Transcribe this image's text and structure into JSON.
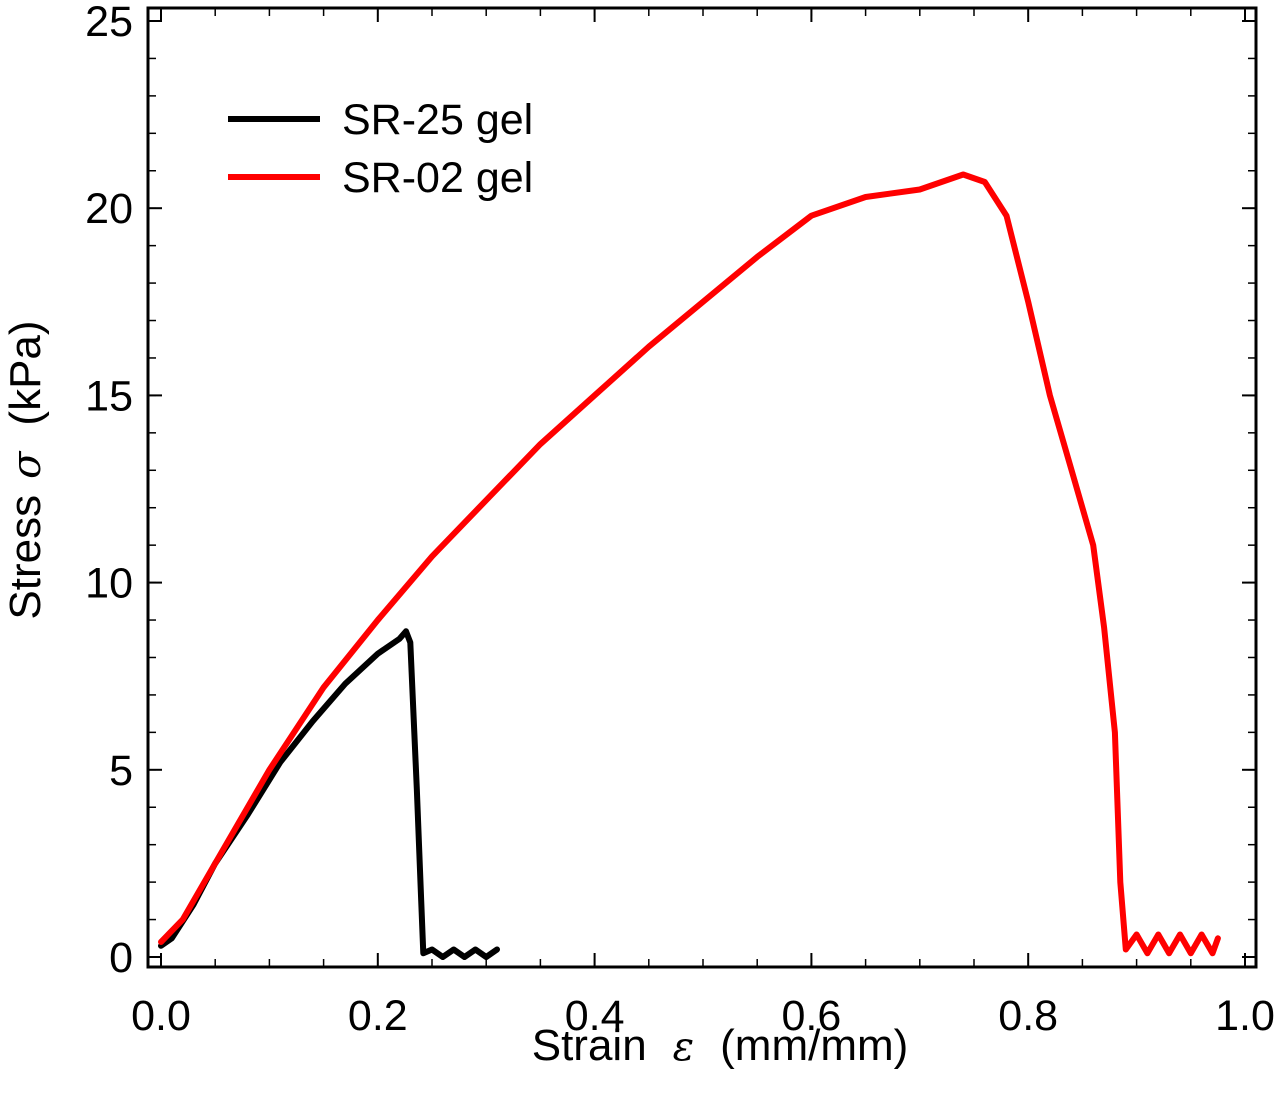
{
  "chart_data": {
    "type": "line",
    "xlabel": {
      "text": "Strain",
      "symbol": "ε",
      "unit": "(mm/mm)"
    },
    "ylabel": {
      "text": "Stress",
      "symbol": "σ",
      "unit": "(kPa)"
    },
    "xlim": [
      0.0,
      1.0
    ],
    "ylim": [
      0,
      25
    ],
    "xticks": [
      "0.0",
      "0.2",
      "0.4",
      "0.6",
      "0.8",
      "1.0"
    ],
    "yticks": [
      "0",
      "5",
      "10",
      "15",
      "20",
      "25"
    ],
    "grid": false,
    "legend_position": "top-left",
    "series": [
      {
        "name": "SR-25 gel",
        "color": "#000000",
        "x": [
          0.0,
          0.01,
          0.03,
          0.05,
          0.08,
          0.11,
          0.14,
          0.17,
          0.2,
          0.22,
          0.226,
          0.23,
          0.236,
          0.24,
          0.242,
          0.25,
          0.26,
          0.27,
          0.28,
          0.29,
          0.3,
          0.31
        ],
        "y": [
          0.3,
          0.5,
          1.4,
          2.5,
          3.8,
          5.2,
          6.3,
          7.3,
          8.1,
          8.5,
          8.7,
          8.4,
          4.5,
          1.5,
          0.1,
          0.2,
          0.0,
          0.2,
          0.0,
          0.2,
          0.0,
          0.2
        ]
      },
      {
        "name": "SR-02 gel",
        "color": "#ff0000",
        "x": [
          0.0,
          0.02,
          0.05,
          0.1,
          0.15,
          0.2,
          0.25,
          0.3,
          0.35,
          0.4,
          0.45,
          0.5,
          0.55,
          0.6,
          0.65,
          0.7,
          0.74,
          0.76,
          0.78,
          0.8,
          0.82,
          0.84,
          0.86,
          0.87,
          0.88,
          0.885,
          0.89,
          0.9,
          0.91,
          0.92,
          0.93,
          0.94,
          0.95,
          0.96,
          0.97,
          0.975
        ],
        "y": [
          0.4,
          1.0,
          2.5,
          5.0,
          7.2,
          9.0,
          10.7,
          12.2,
          13.7,
          15.0,
          16.3,
          17.5,
          18.7,
          19.8,
          20.3,
          20.5,
          20.9,
          20.7,
          19.8,
          17.5,
          15.0,
          13.0,
          11.0,
          8.8,
          6.0,
          2.0,
          0.2,
          0.6,
          0.1,
          0.6,
          0.1,
          0.6,
          0.1,
          0.6,
          0.1,
          0.5
        ]
      }
    ]
  }
}
